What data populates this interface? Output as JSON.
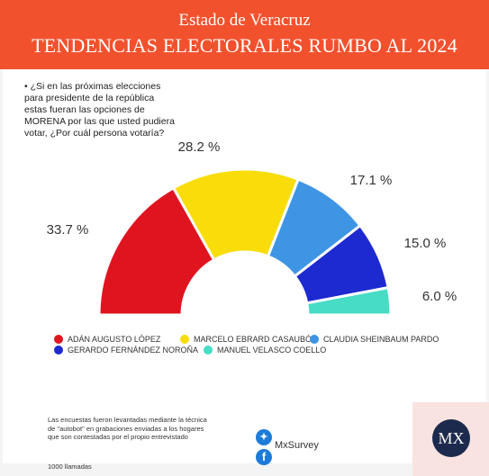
{
  "header": {
    "state": "Estado de Veracruz",
    "title": "TENDENCIAS ELECTORALES RUMBO AL 2024"
  },
  "question": "• ¿Si en las próximas elecciones\npara  presidente de la república\nestas fueran las opciones de\nMORENA por las que usted pudiera\nvotar, ¿Por cuál persona  votaría?",
  "chart_data": {
    "type": "pie",
    "variant": "half-donut",
    "series": [
      {
        "name": "ADÁN AUGUSTO LÓPEZ",
        "value": 33.7,
        "label": "33.7 %",
        "color": "#e0141f"
      },
      {
        "name": "MARCELO EBRARD CASAUBÓN",
        "value": 28.2,
        "label": "28.2 %",
        "color": "#f8dd0b"
      },
      {
        "name": "CLAUDIA SHEINBAUM PARDO",
        "value": 17.1,
        "label": "17.1 %",
        "color": "#3e95e4"
      },
      {
        "name": "GERARDO FERNÁNDEZ NOROÑA",
        "value": 15.0,
        "label": "15.0 %",
        "color": "#1d2ad0"
      },
      {
        "name": "MANUEL VELASCO COELLO",
        "value": 6.0,
        "label": "6.0 %",
        "color": "#47dcc6"
      }
    ],
    "legend_position": "bottom"
  },
  "footer": {
    "method_note": "Las encuestas fueron levantadas mediante la técnica de \"autobot\" en grabaciones enviadas a los hogares que son contestadas por el propio entrevistado",
    "calls": "1000 llamadas",
    "twitter_icon": "twitter-icon",
    "facebook_icon": "facebook-icon",
    "handle": "MxSurvey",
    "logo_text": "MX"
  }
}
